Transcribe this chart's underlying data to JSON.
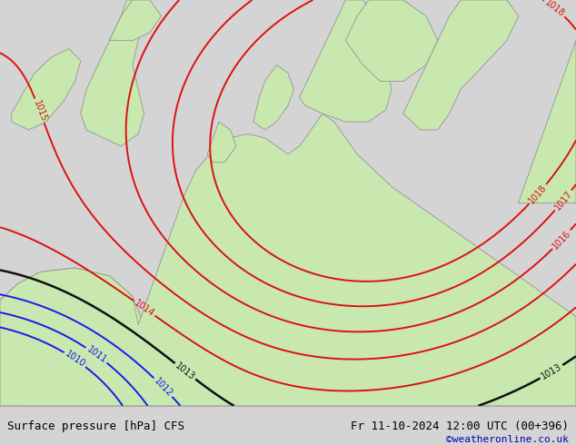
{
  "title_left": "Surface pressure [hPa] CFS",
  "title_right": "Fr 11-10-2024 12:00 UTC (00+396)",
  "credit": "©weatheronline.co.uk",
  "bg_color": "#d4d4d4",
  "land_color": "#c8e8b0",
  "sea_color": "#d4d4d4",
  "fig_width": 6.34,
  "fig_height": 4.9,
  "dpi": 100,
  "bottom_bar_color": "#f0f0f0",
  "text_color": "#000000",
  "credit_color": "#0000bb",
  "border_color": "#888888",
  "land_edge_color": "#888888"
}
